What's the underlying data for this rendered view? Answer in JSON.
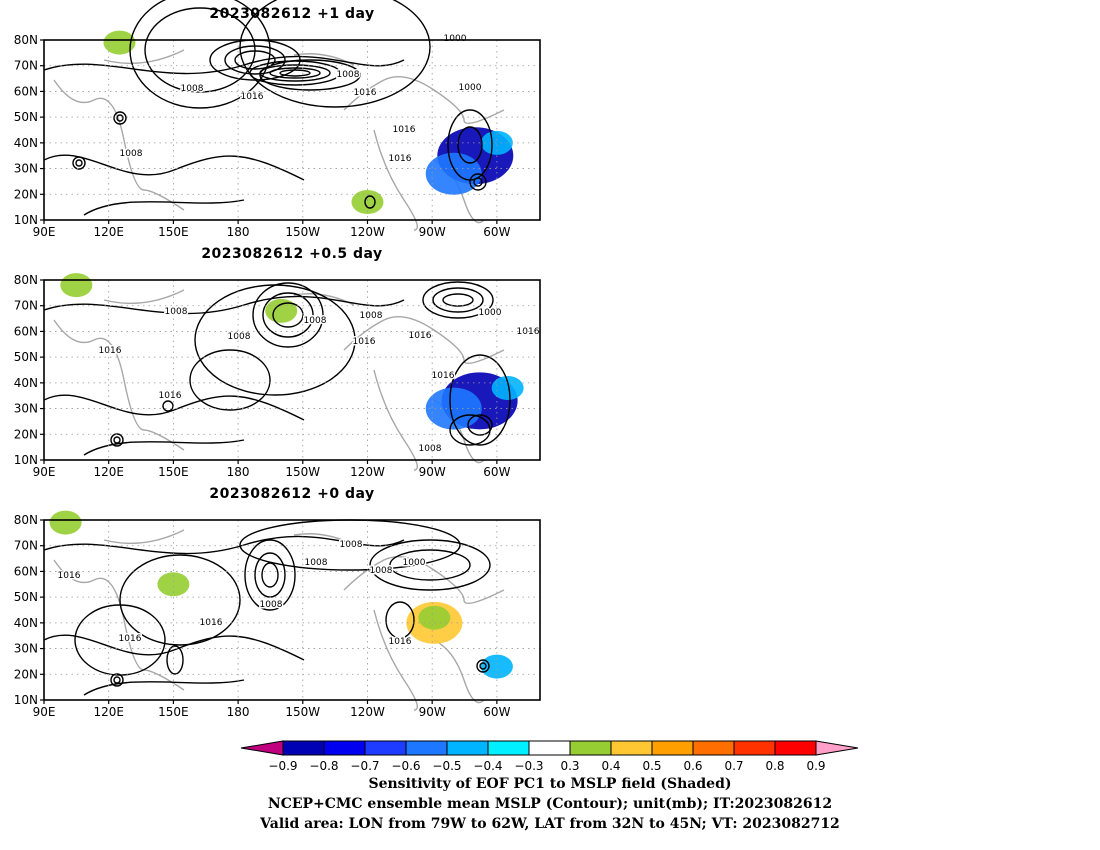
{
  "chart_data": [
    {
      "type": "heatmap",
      "title": "2023082612  +1 day",
      "x_ticks": [
        "90E",
        "120E",
        "150E",
        "180",
        "150W",
        "120W",
        "90W",
        "60W"
      ],
      "y_ticks": [
        "10N",
        "20N",
        "30N",
        "40N",
        "50N",
        "60N",
        "70N",
        "80N"
      ],
      "lon_range": [
        90,
        320
      ],
      "lat_range": [
        10,
        80
      ],
      "contour_labels": [
        "1000",
        "1000",
        "1008",
        "1008",
        "1008",
        "1016",
        "1016",
        "1016",
        "1016"
      ],
      "shaded_regions": [
        {
          "lon": 290,
          "lat": 35,
          "value": -0.8
        },
        {
          "lon": 280,
          "lat": 28,
          "value": -0.5
        },
        {
          "lon": 300,
          "lat": 40,
          "value": -0.4
        },
        {
          "lon": 240,
          "lat": 17,
          "value": 0.4
        },
        {
          "lon": 125,
          "lat": 79,
          "value": 0.4
        }
      ]
    },
    {
      "type": "heatmap",
      "title": "2023082612  +0.5 day",
      "x_ticks": [
        "90E",
        "120E",
        "150E",
        "180",
        "150W",
        "120W",
        "90W",
        "60W"
      ],
      "y_ticks": [
        "10N",
        "20N",
        "30N",
        "40N",
        "50N",
        "60N",
        "70N",
        "80N"
      ],
      "lon_range": [
        90,
        320
      ],
      "lat_range": [
        10,
        80
      ],
      "contour_labels": [
        "1000",
        "1008",
        "1008",
        "1008",
        "1008",
        "1016",
        "1016",
        "1016",
        "1016",
        "1016",
        "1016",
        "1008"
      ],
      "shaded_regions": [
        {
          "lon": 292,
          "lat": 33,
          "value": -0.8
        },
        {
          "lon": 280,
          "lat": 30,
          "value": -0.5
        },
        {
          "lon": 305,
          "lat": 38,
          "value": -0.4
        },
        {
          "lon": 200,
          "lat": 68,
          "value": 0.4
        },
        {
          "lon": 105,
          "lat": 78,
          "value": 0.4
        }
      ]
    },
    {
      "type": "heatmap",
      "title": "2023082612  +0 day",
      "x_ticks": [
        "90E",
        "120E",
        "150E",
        "180",
        "150W",
        "120W",
        "90W",
        "60W"
      ],
      "y_ticks": [
        "10N",
        "20N",
        "30N",
        "40N",
        "50N",
        "60N",
        "70N",
        "80N"
      ],
      "lon_range": [
        90,
        320
      ],
      "lat_range": [
        10,
        80
      ],
      "contour_labels": [
        "1000",
        "1008",
        "1008",
        "1008",
        "1008",
        "1016",
        "1016",
        "1016",
        "1016"
      ],
      "shaded_regions": [
        {
          "lon": 271,
          "lat": 40,
          "value": 0.5
        },
        {
          "lon": 271,
          "lat": 42,
          "value": 0.4
        },
        {
          "lon": 150,
          "lat": 55,
          "value": 0.4
        },
        {
          "lon": 100,
          "lat": 79,
          "value": 0.4
        },
        {
          "lon": 300,
          "lat": 23,
          "value": -0.4
        }
      ]
    }
  ],
  "colorbar": {
    "levels": [
      "-0.9",
      "-0.8",
      "-0.7",
      "-0.6",
      "-0.5",
      "-0.4",
      "-0.3",
      "0.3",
      "0.4",
      "0.5",
      "0.6",
      "0.7",
      "0.8",
      "0.9"
    ],
    "colors": [
      "#c0007f",
      "#0000b4",
      "#0000f0",
      "#1e3cff",
      "#1e78ff",
      "#00b4ff",
      "#00f0ff",
      "#ffffff",
      "#96cd32",
      "#ffc832",
      "#ffa000",
      "#ff6e00",
      "#ff3200",
      "#ff0000",
      "#ffa0c8"
    ]
  },
  "captions": {
    "line1": "Sensitivity of EOF PC1 to MSLP field (Shaded)",
    "line2": "NCEP+CMC ensemble mean MSLP (Contour); unit(mb); IT:2023082612",
    "line3": "Valid area: LON from 79W to 62W, LAT from 32N to 45N; VT: 2023082712"
  }
}
